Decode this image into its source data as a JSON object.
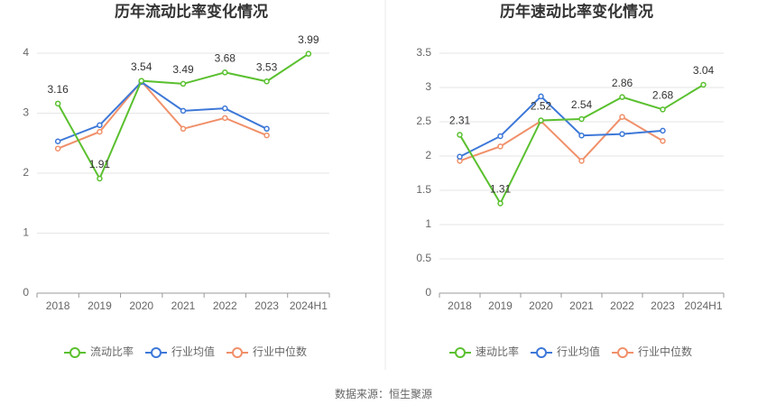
{
  "chart_data": [
    {
      "type": "line",
      "title": "历年流动比率变化情况",
      "categories": [
        "2018",
        "2019",
        "2020",
        "2021",
        "2022",
        "2023",
        "2024H1"
      ],
      "series": [
        {
          "name": "流动比率",
          "color": "#5ac02f",
          "values": [
            3.16,
            1.91,
            3.54,
            3.49,
            3.68,
            3.53,
            3.99
          ],
          "labels": true
        },
        {
          "name": "行业均值",
          "color": "#3d78d8",
          "values": [
            2.53,
            2.8,
            3.52,
            3.04,
            3.08,
            2.74,
            null
          ]
        },
        {
          "name": "行业中位数",
          "color": "#f0906a",
          "values": [
            2.41,
            2.69,
            3.53,
            2.74,
            2.92,
            2.63,
            null
          ]
        }
      ],
      "ylim": [
        0,
        4
      ],
      "yticks": [
        0,
        1,
        2,
        3,
        4
      ],
      "grid": true
    },
    {
      "type": "line",
      "title": "历年速动比率变化情况",
      "categories": [
        "2018",
        "2019",
        "2020",
        "2021",
        "2022",
        "2023",
        "2024H1"
      ],
      "series": [
        {
          "name": "速动比率",
          "color": "#5ac02f",
          "values": [
            2.31,
            1.31,
            2.52,
            2.54,
            2.86,
            2.68,
            3.04
          ],
          "labels": true
        },
        {
          "name": "行业均值",
          "color": "#3d78d8",
          "values": [
            1.99,
            2.29,
            2.87,
            2.3,
            2.32,
            2.37,
            null
          ]
        },
        {
          "name": "行业中位数",
          "color": "#f0906a",
          "values": [
            1.93,
            2.14,
            2.51,
            1.93,
            2.57,
            2.22,
            null
          ]
        }
      ],
      "ylim": [
        0,
        3.5
      ],
      "yticks": [
        0,
        0.5,
        1,
        1.5,
        2,
        2.5,
        3,
        3.5
      ],
      "grid": true
    }
  ],
  "source": "数据来源：恒生聚源"
}
